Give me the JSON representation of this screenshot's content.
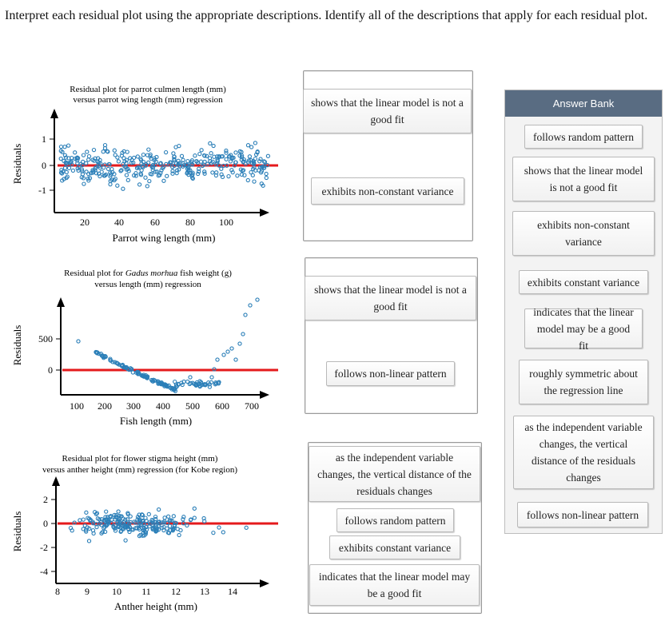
{
  "instructions": "Interpret each residual plot using the appropriate descriptions. Identify all of the descriptions that apply for each residual plot.",
  "plots": [
    {
      "title_line1": "Residual plot for parrot culmen length (mm)",
      "title_line2": "versus parrot wing length (mm) regression",
      "ylabel": "Residuals",
      "xlabel": "Parrot wing length (mm)",
      "xticks": [
        "20",
        "40",
        "60",
        "80",
        "100"
      ],
      "yticks": [
        "1",
        "0",
        "-1"
      ]
    },
    {
      "title_line1_pre": "Residual plot for ",
      "title_line1_italic": "Gadus morhua",
      "title_line1_post": " fish weight (g)",
      "title_line2": "versus length (mm) regression",
      "ylabel": "Residuals",
      "xlabel": "Fish length (mm)",
      "xticks": [
        "100",
        "200",
        "300",
        "400",
        "500",
        "600",
        "700"
      ],
      "yticks": [
        "500",
        "0"
      ]
    },
    {
      "title_line1": "Residual plot for flower stigma height (mm)",
      "title_line2": "versus anther height (mm) regression (for Kobe region)",
      "ylabel": "Residuals",
      "xlabel": "Anther height (mm)",
      "xticks": [
        "8",
        "9",
        "10",
        "11",
        "12",
        "13",
        "14"
      ],
      "yticks": [
        "2",
        "0",
        "-2",
        "-4"
      ]
    }
  ],
  "dropzones": [
    {
      "tiles": [
        "shows that the linear model is not a good fit",
        "exhibits non-constant variance"
      ]
    },
    {
      "tiles": [
        "shows that the linear model is not a good fit",
        "follows non-linear pattern"
      ]
    },
    {
      "tiles": [
        "as the independent variable changes, the vertical distance of the residuals changes",
        "follows random pattern",
        "exhibits constant variance",
        "indicates that the linear model may be a good fit"
      ]
    }
  ],
  "answer_bank": {
    "title": "Answer Bank",
    "items": [
      "follows random pattern",
      "shows that the linear model is not a good fit",
      "exhibits non-constant variance",
      "exhibits constant variance",
      "indicates that the linear model may be a good fit",
      "roughly symmetric about the regression line",
      "as the independent variable changes, the vertical distance of the residuals changes",
      "follows non-linear pattern"
    ]
  },
  "colors": {
    "points": "#2b7fb8",
    "zero_line": "#e41a1c",
    "bank_header": "#596c82"
  }
}
